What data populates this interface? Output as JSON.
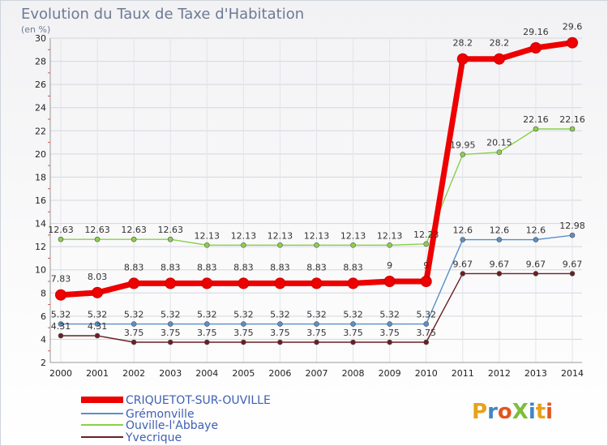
{
  "chart_data": {
    "type": "line",
    "title": "Evolution du Taux de Taxe d'Habitation",
    "unit_label": "(en %)",
    "x": [
      "2000",
      "2001",
      "2002",
      "2003",
      "2004",
      "2005",
      "2006",
      "2007",
      "2008",
      "2009",
      "2010",
      "2011",
      "2012",
      "2013",
      "2014"
    ],
    "ylim": [
      2,
      30
    ],
    "yticks": [
      2,
      4,
      6,
      8,
      10,
      12,
      14,
      16,
      18,
      20,
      22,
      24,
      26,
      28,
      30
    ],
    "grid": true,
    "legend_position": "bottom-left",
    "series": [
      {
        "name": "CRIQUETOT-SUR-OUVILLE",
        "color": "#ee0000",
        "values": [
          7.83,
          8.03,
          8.83,
          8.83,
          8.83,
          8.83,
          8.83,
          8.83,
          8.83,
          9,
          9,
          28.2,
          28.2,
          29.16,
          29.6
        ],
        "labels": [
          "7.83",
          "8.03",
          "8.83",
          "8.83",
          "8.83",
          "8.83",
          "8.83",
          "8.83",
          "8.83",
          "9",
          "9",
          "28.2",
          "28.2",
          "29.16",
          "29.6"
        ]
      },
      {
        "name": "Grémonville",
        "color": "#5a8fc6",
        "values": [
          5.32,
          5.32,
          5.32,
          5.32,
          5.32,
          5.32,
          5.32,
          5.32,
          5.32,
          5.32,
          5.32,
          12.6,
          12.6,
          12.6,
          12.98
        ],
        "labels": [
          "5.32",
          "5.32",
          "5.32",
          "5.32",
          "5.32",
          "5.32",
          "5.32",
          "5.32",
          "5.32",
          "5.32",
          "5.32",
          "12.6",
          "12.6",
          "12.6",
          "12.98"
        ]
      },
      {
        "name": "Ouville-l'Abbaye",
        "color": "#8ad04a",
        "values": [
          12.63,
          12.63,
          12.63,
          12.63,
          12.13,
          12.13,
          12.13,
          12.13,
          12.13,
          12.13,
          12.23,
          19.95,
          20.15,
          22.16,
          22.16
        ],
        "labels": [
          "12.63",
          "12.63",
          "12.63",
          "12.63",
          "12.13",
          "12.13",
          "12.13",
          "12.13",
          "12.13",
          "12.13",
          "12.23",
          "19.95",
          "20.15",
          "22.16",
          "22.16"
        ]
      },
      {
        "name": "Yvecrique",
        "color": "#6b1f24",
        "values": [
          4.31,
          4.31,
          3.75,
          3.75,
          3.75,
          3.75,
          3.75,
          3.75,
          3.75,
          3.75,
          3.75,
          9.67,
          9.67,
          9.67,
          9.67
        ],
        "labels": [
          "4.31",
          "4.31",
          "3.75",
          "3.75",
          "3.75",
          "3.75",
          "3.75",
          "3.75",
          "3.75",
          "3.75",
          "3.75",
          "9.67",
          "9.67",
          "9.67",
          "9.67"
        ]
      }
    ]
  },
  "watermark": "ProXiti"
}
